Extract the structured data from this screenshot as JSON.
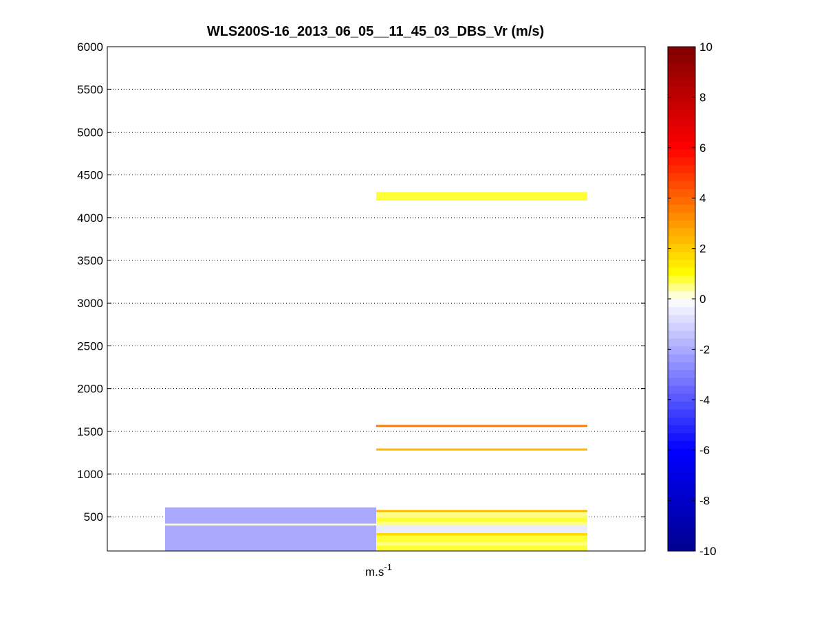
{
  "chart_data": {
    "type": "heatmap",
    "title": "WLS200S-16_2013_06_05__11_45_03_DBS_Vr (m/s)",
    "xlabel": {
      "base": "m.s",
      "exponent": "-1"
    },
    "ylabel": "",
    "ylim": [
      100,
      6000
    ],
    "yticks": [
      500,
      1000,
      1500,
      2000,
      2500,
      3000,
      3500,
      4000,
      4500,
      5000,
      5500,
      6000
    ],
    "grid": "horizontal-dotted",
    "colorbar": {
      "range": [
        -10,
        10
      ],
      "ticks": [
        -10,
        -8,
        -6,
        -4,
        -2,
        0,
        2,
        4,
        6,
        8,
        10
      ],
      "levels": 64,
      "colormap": [
        {
          "v": -10,
          "color": "#00008f"
        },
        {
          "v": -6,
          "color": "#0000ff"
        },
        {
          "v": 0,
          "color": "#ffffff"
        },
        {
          "v": 1,
          "color": "#ffff00"
        },
        {
          "v": 6,
          "color": "#ff0000"
        },
        {
          "v": 10,
          "color": "#800000"
        }
      ]
    },
    "columns": [
      {
        "cells": [
          {
            "y0": 100,
            "y1": 400,
            "value": -2.0
          },
          {
            "y0": 400,
            "y1": 420,
            "value": 0.0
          },
          {
            "y0": 420,
            "y1": 610,
            "value": -2.0
          }
        ]
      },
      {
        "cells": [
          {
            "y0": 100,
            "y1": 165,
            "value": 0.9
          },
          {
            "y0": 165,
            "y1": 205,
            "value": 0.6
          },
          {
            "y0": 205,
            "y1": 280,
            "value": 0.9
          },
          {
            "y0": 280,
            "y1": 310,
            "value": 1.7
          },
          {
            "y0": 310,
            "y1": 400,
            "value": -0.5
          },
          {
            "y0": 400,
            "y1": 440,
            "value": 0.6
          },
          {
            "y0": 440,
            "y1": 490,
            "value": 0.9
          },
          {
            "y0": 490,
            "y1": 555,
            "value": 0.6
          },
          {
            "y0": 555,
            "y1": 580,
            "value": 2.2
          },
          {
            "y0": 1275,
            "y1": 1300,
            "value": 2.2
          },
          {
            "y0": 1550,
            "y1": 1575,
            "value": 3.5
          },
          {
            "y0": 4200,
            "y1": 4300,
            "value": 0.8
          }
        ]
      }
    ]
  }
}
